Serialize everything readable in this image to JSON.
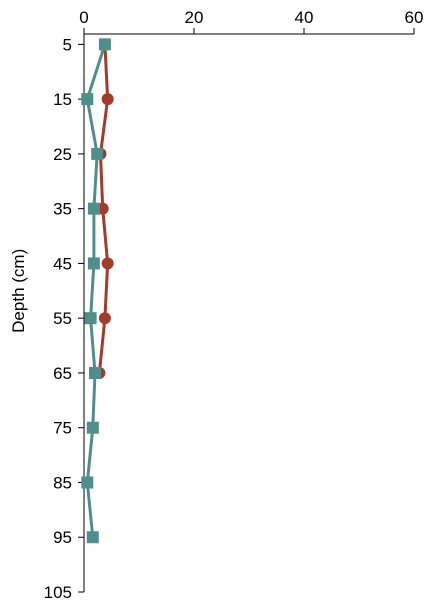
{
  "chart_data": {
    "type": "line",
    "orientation": "depth-profile",
    "title": "",
    "xlabel": "",
    "ylabel": "Depth (cm)",
    "xlim": [
      0,
      60
    ],
    "ylim": [
      105,
      0
    ],
    "x_axis_position": "top",
    "x_ticks": [
      0,
      20,
      40,
      60
    ],
    "y_ticks": [
      5,
      15,
      25,
      35,
      45,
      55,
      65,
      75,
      85,
      95,
      105
    ],
    "grid": false,
    "legend": "none",
    "series": [
      {
        "marker": "circle",
        "color": "#a33a2a",
        "points": [
          {
            "depth": 5,
            "value": 3.8
          },
          {
            "depth": 15,
            "value": 4.3
          },
          {
            "depth": 25,
            "value": 3.0
          },
          {
            "depth": 35,
            "value": 3.4
          },
          {
            "depth": 45,
            "value": 4.3
          },
          {
            "depth": 55,
            "value": 3.8
          },
          {
            "depth": 65,
            "value": 2.8
          }
        ]
      },
      {
        "marker": "square",
        "color": "#4f8e8b",
        "points": [
          {
            "depth": 5,
            "value": 3.8
          },
          {
            "depth": 15,
            "value": 0.6
          },
          {
            "depth": 25,
            "value": 2.4
          },
          {
            "depth": 35,
            "value": 1.8
          },
          {
            "depth": 45,
            "value": 1.8
          },
          {
            "depth": 55,
            "value": 1.2
          },
          {
            "depth": 65,
            "value": 2.0
          },
          {
            "depth": 75,
            "value": 1.6
          },
          {
            "depth": 85,
            "value": 0.6
          },
          {
            "depth": 95,
            "value": 1.6
          }
        ]
      }
    ]
  }
}
